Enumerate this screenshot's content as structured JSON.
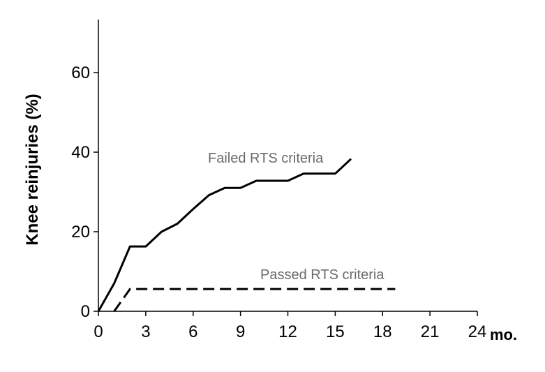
{
  "chart_data": {
    "type": "line",
    "title": "",
    "xlabel": "mo.",
    "ylabel": "Knee reinjuries (%)",
    "xlim": [
      0,
      24
    ],
    "ylim": [
      0,
      72
    ],
    "xticks": [
      0,
      3,
      6,
      9,
      12,
      15,
      18,
      21,
      24
    ],
    "yticks": [
      0,
      20,
      40,
      60
    ],
    "grid": false,
    "legend": "none",
    "series": [
      {
        "name": "Failed RTS criteria",
        "style": "solid",
        "color": "#000000",
        "x": [
          0,
          1,
          2,
          3,
          4,
          5,
          6,
          7,
          8,
          9,
          10,
          11,
          12,
          13,
          14,
          15,
          16
        ],
        "y": [
          0,
          7,
          16.3,
          16.3,
          20,
          22,
          25.7,
          29.2,
          31,
          31,
          32.8,
          32.8,
          32.8,
          34.6,
          34.6,
          34.6,
          38.3
        ]
      },
      {
        "name": "Passed RTS criteria",
        "style": "dashed",
        "color": "#000000",
        "x": [
          1,
          2,
          18.8
        ],
        "y": [
          0,
          5.6,
          5.6
        ]
      }
    ]
  }
}
